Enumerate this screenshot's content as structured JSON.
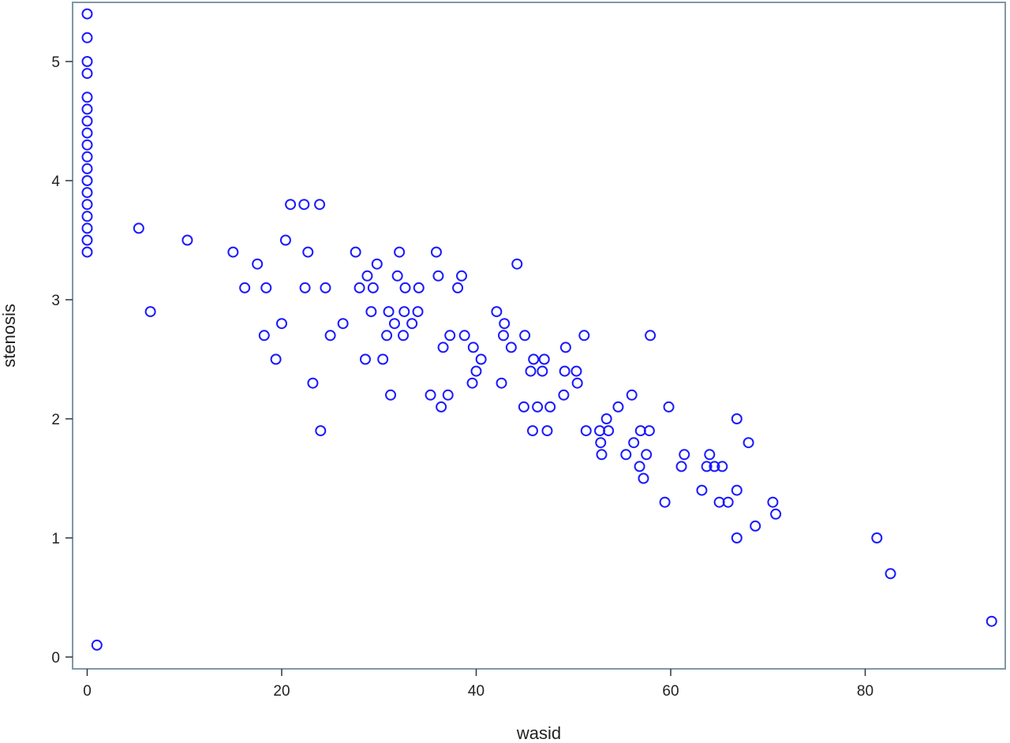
{
  "chart_data": {
    "type": "scatter",
    "xlabel": "wasid",
    "ylabel": "stenosis",
    "xlim": [
      -1,
      94
    ],
    "ylim": [
      -0.2,
      5.5
    ],
    "xticks": [
      0,
      20,
      40,
      60,
      80
    ],
    "yticks": [
      0,
      1,
      2,
      3,
      4,
      5
    ],
    "grid": false,
    "legend": "none",
    "marker": "open-circle",
    "marker_color": "#1a1aff",
    "frame_color": "#7f98a8",
    "series": [
      {
        "points": [
          [
            0,
            5.4
          ],
          [
            0,
            5.2
          ],
          [
            0,
            5.0
          ],
          [
            0,
            4.9
          ],
          [
            0,
            4.7
          ],
          [
            0,
            4.6
          ],
          [
            0,
            4.5
          ],
          [
            0,
            4.4
          ],
          [
            0,
            4.3
          ],
          [
            0,
            4.2
          ],
          [
            0,
            4.1
          ],
          [
            0,
            4.0
          ],
          [
            0,
            3.9
          ],
          [
            0,
            3.8
          ],
          [
            0,
            3.7
          ],
          [
            0,
            3.6
          ],
          [
            0,
            3.5
          ],
          [
            0,
            3.4
          ],
          [
            1.0,
            0.1
          ],
          [
            5.3,
            3.6
          ],
          [
            6.5,
            2.9
          ],
          [
            10.3,
            3.5
          ],
          [
            15.0,
            3.4
          ],
          [
            16.2,
            3.1
          ],
          [
            17.5,
            3.3
          ],
          [
            18.2,
            2.7
          ],
          [
            18.4,
            3.1
          ],
          [
            19.4,
            2.5
          ],
          [
            20.0,
            2.8
          ],
          [
            20.4,
            3.5
          ],
          [
            20.9,
            3.8
          ],
          [
            22.3,
            3.8
          ],
          [
            22.4,
            3.1
          ],
          [
            22.7,
            3.4
          ],
          [
            23.2,
            2.3
          ],
          [
            23.9,
            3.8
          ],
          [
            24.0,
            1.9
          ],
          [
            24.5,
            3.1
          ],
          [
            25.0,
            2.7
          ],
          [
            26.3,
            2.8
          ],
          [
            27.6,
            3.4
          ],
          [
            28.0,
            3.1
          ],
          [
            28.6,
            2.5
          ],
          [
            28.8,
            3.2
          ],
          [
            29.2,
            2.9
          ],
          [
            29.4,
            3.1
          ],
          [
            29.8,
            3.3
          ],
          [
            30.4,
            2.5
          ],
          [
            30.8,
            2.7
          ],
          [
            31.0,
            2.9
          ],
          [
            31.2,
            2.2
          ],
          [
            31.6,
            2.8
          ],
          [
            31.9,
            3.2
          ],
          [
            32.1,
            3.4
          ],
          [
            32.5,
            2.7
          ],
          [
            32.6,
            2.9
          ],
          [
            32.7,
            3.1
          ],
          [
            33.4,
            2.8
          ],
          [
            34.0,
            2.9
          ],
          [
            34.1,
            3.1
          ],
          [
            35.3,
            2.2
          ],
          [
            35.9,
            3.4
          ],
          [
            36.1,
            3.2
          ],
          [
            36.4,
            2.1
          ],
          [
            36.6,
            2.6
          ],
          [
            37.1,
            2.2
          ],
          [
            37.3,
            2.7
          ],
          [
            38.1,
            3.1
          ],
          [
            38.5,
            3.2
          ],
          [
            38.8,
            2.7
          ],
          [
            39.6,
            2.3
          ],
          [
            39.7,
            2.6
          ],
          [
            40.0,
            2.4
          ],
          [
            40.5,
            2.5
          ],
          [
            42.1,
            2.9
          ],
          [
            42.6,
            2.3
          ],
          [
            42.8,
            2.7
          ],
          [
            42.9,
            2.8
          ],
          [
            43.6,
            2.6
          ],
          [
            44.2,
            3.3
          ],
          [
            44.9,
            2.1
          ],
          [
            45.0,
            2.7
          ],
          [
            45.6,
            2.4
          ],
          [
            45.8,
            1.9
          ],
          [
            45.9,
            2.5
          ],
          [
            46.3,
            2.1
          ],
          [
            46.8,
            2.4
          ],
          [
            47.0,
            2.5
          ],
          [
            47.3,
            1.9
          ],
          [
            47.6,
            2.1
          ],
          [
            49.0,
            2.2
          ],
          [
            49.1,
            2.4
          ],
          [
            49.2,
            2.6
          ],
          [
            50.3,
            2.4
          ],
          [
            50.4,
            2.3
          ],
          [
            51.1,
            2.7
          ],
          [
            51.3,
            1.9
          ],
          [
            52.7,
            1.9
          ],
          [
            52.8,
            1.8
          ],
          [
            52.9,
            1.7
          ],
          [
            53.4,
            2.0
          ],
          [
            53.6,
            1.9
          ],
          [
            54.6,
            2.1
          ],
          [
            55.4,
            1.7
          ],
          [
            56.0,
            2.2
          ],
          [
            56.2,
            1.8
          ],
          [
            56.8,
            1.6
          ],
          [
            56.9,
            1.9
          ],
          [
            57.2,
            1.5
          ],
          [
            57.5,
            1.7
          ],
          [
            57.8,
            1.9
          ],
          [
            57.9,
            2.7
          ],
          [
            59.4,
            1.3
          ],
          [
            59.8,
            2.1
          ],
          [
            61.1,
            1.6
          ],
          [
            61.4,
            1.7
          ],
          [
            63.2,
            1.4
          ],
          [
            63.7,
            1.6
          ],
          [
            64.0,
            1.7
          ],
          [
            64.5,
            1.6
          ],
          [
            65.0,
            1.3
          ],
          [
            65.3,
            1.6
          ],
          [
            65.9,
            1.3
          ],
          [
            66.8,
            2.0
          ],
          [
            66.8,
            1.4
          ],
          [
            66.8,
            1.0
          ],
          [
            68.0,
            1.8
          ],
          [
            68.7,
            1.1
          ],
          [
            70.5,
            1.3
          ],
          [
            70.8,
            1.2
          ],
          [
            81.2,
            1.0
          ],
          [
            82.6,
            0.7
          ],
          [
            93.0,
            0.3
          ]
        ]
      }
    ]
  }
}
